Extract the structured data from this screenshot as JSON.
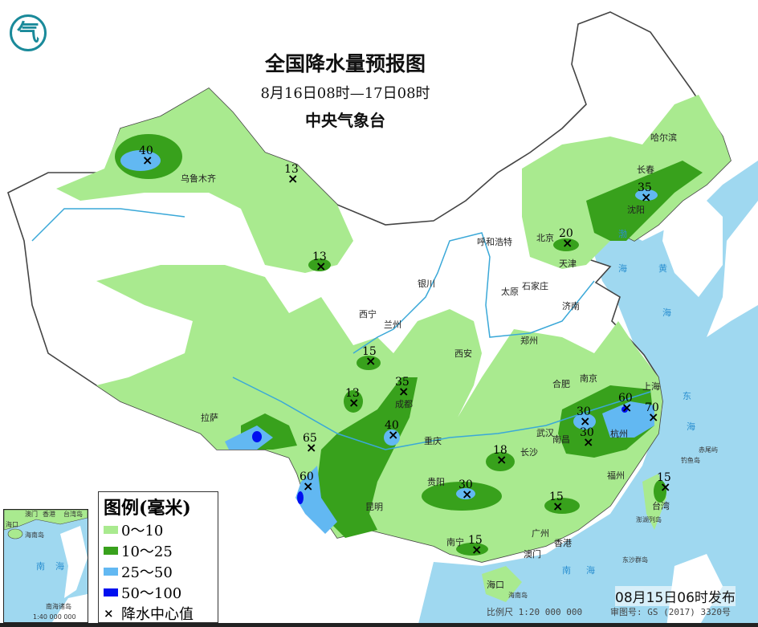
{
  "header": {
    "title": "全国降水量预报图",
    "period": "8月16日08时—17日08时",
    "agency": "中央气象台",
    "logo_glyph": "气"
  },
  "legend": {
    "title": "图例(毫米)",
    "items": [
      {
        "label": "0～10",
        "color": "#a9ea8f"
      },
      {
        "label": "10～25",
        "color": "#38a11c"
      },
      {
        "label": "25～50",
        "color": "#62b8f2"
      },
      {
        "label": "50～100",
        "color": "#0010f0"
      }
    ],
    "center_label": "降水中心值",
    "center_symbol": "×"
  },
  "rain_centers": [
    40,
    13,
    13,
    35,
    20,
    15,
    13,
    35,
    40,
    65,
    60,
    18,
    30,
    15,
    15,
    30,
    30,
    60,
    70,
    15
  ],
  "cities": [
    "乌鲁木齐",
    "哈尔滨",
    "长春",
    "沈阳",
    "北京",
    "天津",
    "呼和浩特",
    "石家庄",
    "太原",
    "济南",
    "银川",
    "西宁",
    "兰州",
    "郑州",
    "西安",
    "合肥",
    "南京",
    "上海",
    "杭州",
    "成都",
    "重庆",
    "武汉",
    "南昌",
    "长沙",
    "拉萨",
    "贵阳",
    "昆明",
    "福州",
    "南宁",
    "广州",
    "香港",
    "澳门",
    "海口",
    "台湾"
  ],
  "seas": [
    "渤",
    "海",
    "黄",
    "海",
    "东",
    "海",
    "南",
    "海"
  ],
  "islands": [
    "海南岛",
    "钓鱼岛",
    "赤尾屿",
    "澎湖列岛",
    "东沙群岛"
  ],
  "inset": {
    "labels": [
      "澳门",
      "香港",
      "台湾岛",
      "海口",
      "海南岛",
      "南",
      "海",
      "南海诸岛"
    ],
    "scale": "1:40 000 000"
  },
  "footer": {
    "issued": "08月15日06时发布",
    "scale": "比例尺 1:20 000 000",
    "review": "审图号: GS (2017) 3320号"
  },
  "colors": {
    "sea": "#9fd8f0",
    "river": "#3aa8d8",
    "border": "#444444"
  }
}
